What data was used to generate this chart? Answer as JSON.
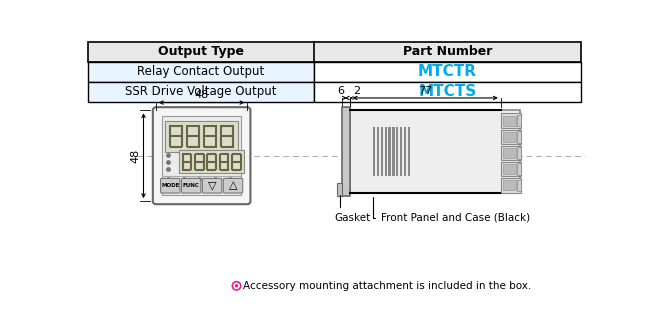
{
  "table_header": [
    "Output Type",
    "Part Number"
  ],
  "table_rows": [
    [
      "Relay Contact Output",
      "MTCTR"
    ],
    [
      "SSR Drive Voltage Output",
      "MTCTS"
    ]
  ],
  "part_number_color": "#00AAEE",
  "header_bg": "#E8E8E8",
  "row_bg": "#E8F4FF",
  "row2_bg": "#E8F4FF",
  "footnote": "Accessory mounting attachment is included in the box.",
  "dim_48_label": "48",
  "dim_48_side": "48",
  "dim_77_label": "77",
  "dim_6_label": "6",
  "dim_2_label": "2",
  "gasket_label": "Gasket",
  "front_panel_label": "Front Panel and Case (Black)",
  "background": "#FFFFFF"
}
